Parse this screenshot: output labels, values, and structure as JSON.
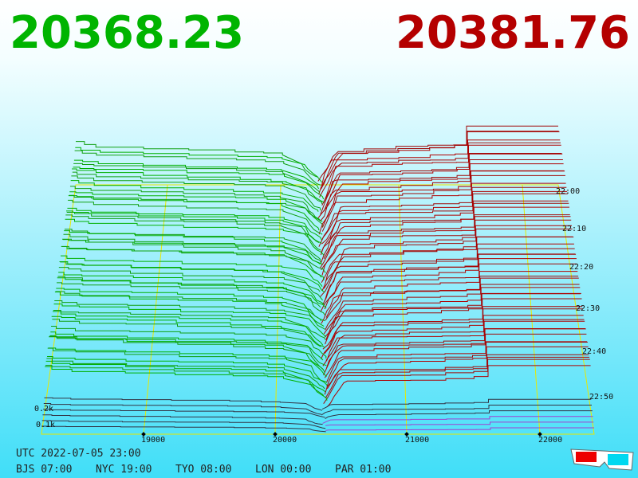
{
  "header": {
    "bid_price": "20368.23",
    "ask_price": "20381.76"
  },
  "price_axis": {
    "labels": [
      "19000",
      "20000",
      "21000",
      "22000"
    ]
  },
  "time_axis": {
    "labels": [
      "22:00",
      "22:10",
      "22:20",
      "22:30",
      "22:40",
      "22:50"
    ]
  },
  "depth_axis": {
    "labels": [
      "0.2k",
      "0.1k"
    ]
  },
  "footer": {
    "utc": "UTC 2022-07-05 23:00",
    "zones": [
      "BJS 07:00",
      "NYC 19:00",
      "TYO 08:00",
      "LON 00:00",
      "PAR 01:00"
    ]
  }
}
